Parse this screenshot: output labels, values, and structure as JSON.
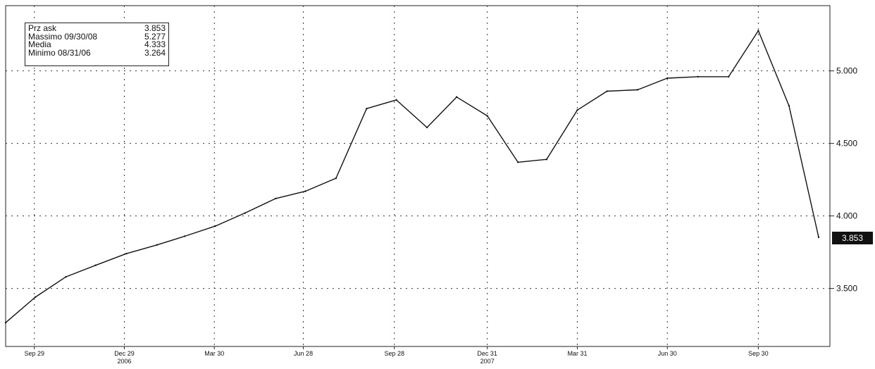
{
  "legend": {
    "rows": [
      {
        "label": "Prz ask",
        "value": "3.853"
      },
      {
        "label": "Massimo  09/30/08",
        "value": "5.277"
      },
      {
        "label": "Media",
        "value": "4.333"
      },
      {
        "label": "Minimo  08/31/06",
        "value": "3.264"
      }
    ]
  },
  "last_price_label": "3.853",
  "footer_text": "",
  "chart_data": {
    "type": "line",
    "title": "",
    "xlabel": "",
    "ylabel": "",
    "ylim": [
      3.1,
      5.45
    ],
    "y_ticks": [
      "3.500",
      "4.000",
      "4.500",
      "5.000"
    ],
    "x_ticks": [
      "Sep 29",
      "Dec 29",
      "Mar 30",
      "Jun 28",
      "Sep 28",
      "Dec 31",
      "Mar 31",
      "Jun 30",
      "Sep 30"
    ],
    "year_labels": [
      "2006",
      "2007"
    ],
    "grid": true,
    "series": [
      {
        "x": [
          "2006-08-31",
          "2006-09-30",
          "2006-10-31",
          "2006-11-30",
          "2006-12-31",
          "2007-01-31",
          "2007-02-28",
          "2007-03-31",
          "2007-04-30",
          "2007-05-31",
          "2007-06-30",
          "2007-07-31",
          "2007-08-31",
          "2007-09-30",
          "2007-10-31",
          "2007-11-30",
          "2007-12-31",
          "2008-01-31",
          "2008-02-29",
          "2008-03-31",
          "2008-04-30",
          "2008-05-31",
          "2008-06-30",
          "2008-07-31",
          "2008-08-31",
          "2008-09-30",
          "2008-10-31",
          "2008-11-30"
        ],
        "values": [
          3.264,
          3.44,
          3.58,
          3.66,
          3.74,
          3.8,
          3.86,
          3.93,
          4.02,
          4.12,
          4.17,
          4.26,
          4.74,
          4.8,
          4.61,
          4.82,
          4.69,
          4.37,
          4.39,
          4.73,
          4.86,
          4.87,
          4.95,
          4.96,
          4.96,
          5.277,
          4.76,
          3.853
        ]
      }
    ]
  }
}
